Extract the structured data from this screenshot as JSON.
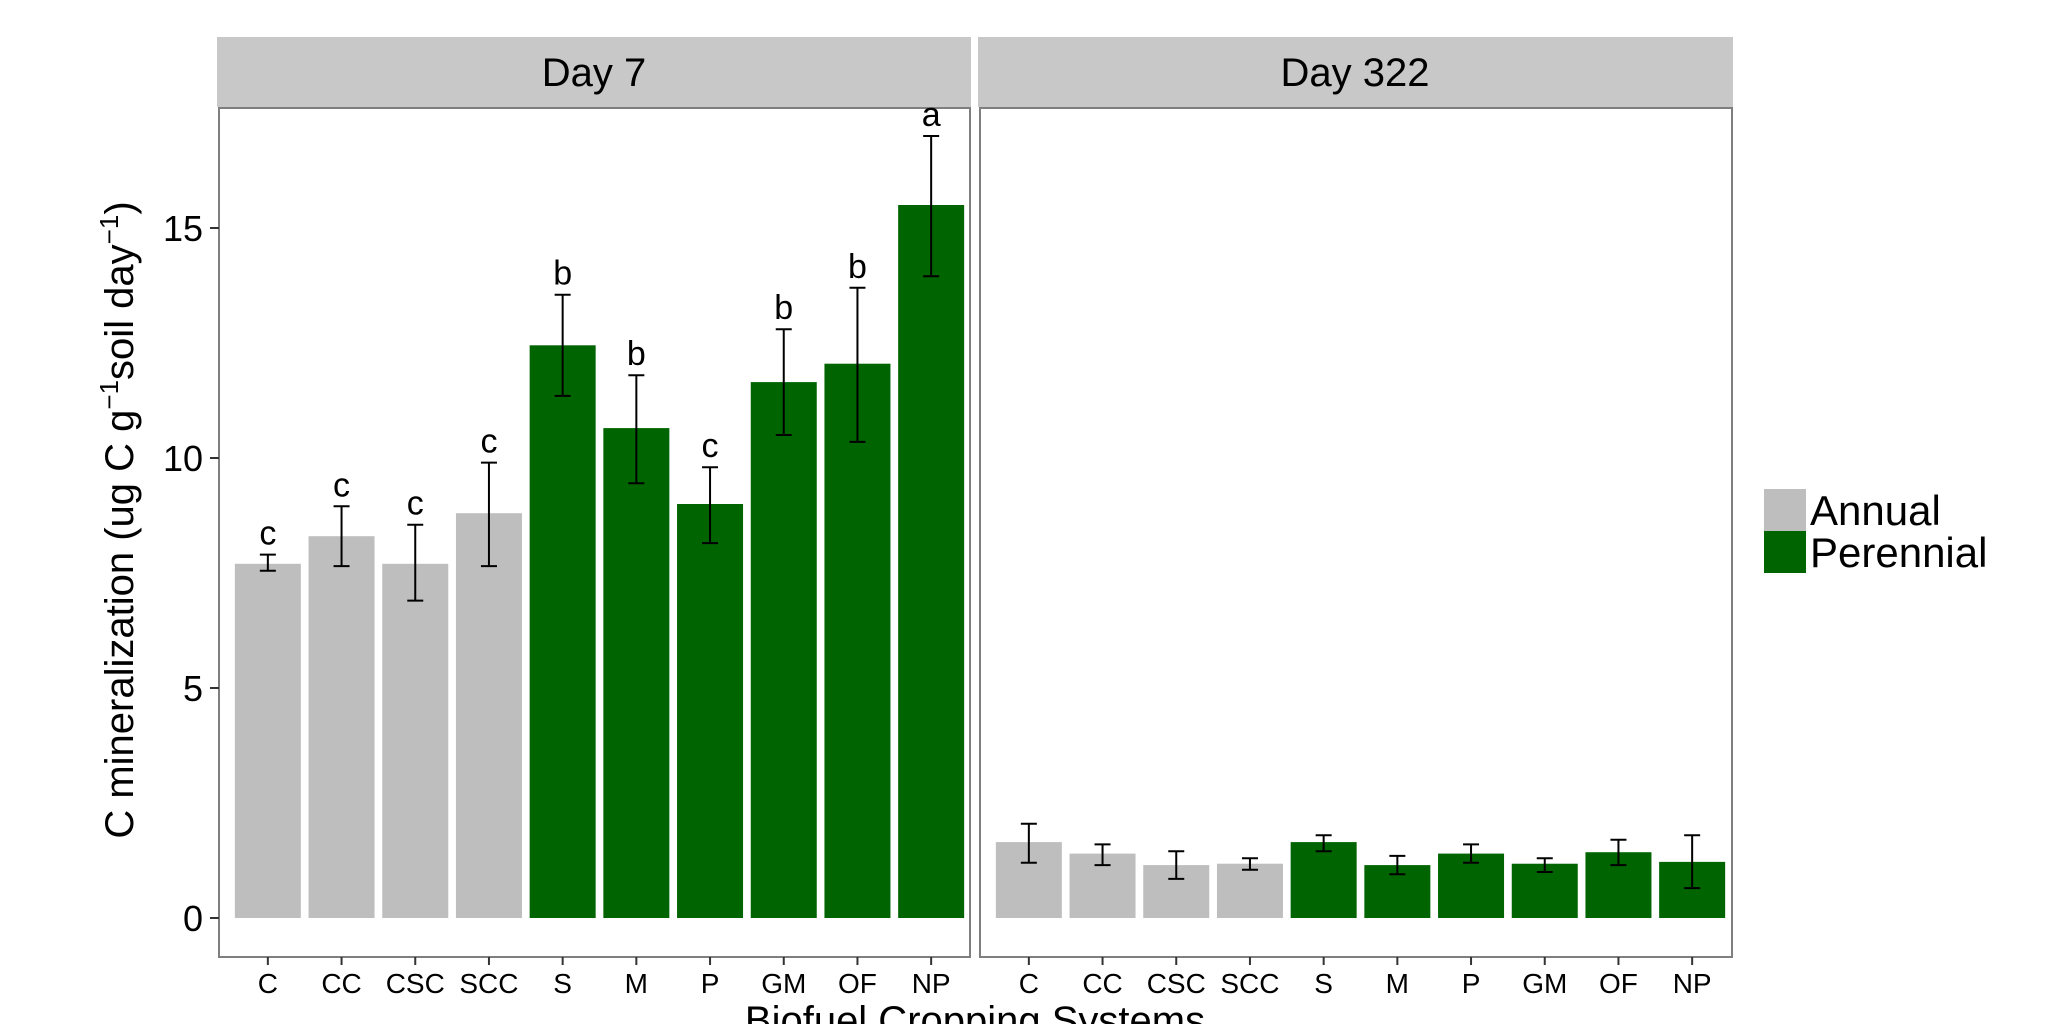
{
  "chart_data": {
    "type": "bar",
    "xlabel": "Biofuel Cropping Systems",
    "ylabel_main": "C mineralization (ug C g",
    "ylabel_sup1": "−1",
    "ylabel_mid": "soil day",
    "ylabel_sup2": "−1",
    "ylabel_end": ")",
    "ylim": [
      -0.8,
      17.6
    ],
    "yticks": [
      "0",
      "5",
      "10",
      "15"
    ],
    "ytick_values": [
      0,
      5,
      10,
      15
    ],
    "categories": [
      "C",
      "CC",
      "CSC",
      "SCC",
      "S",
      "M",
      "P",
      "GM",
      "OF",
      "NP"
    ],
    "groups": [
      "Annual",
      "Annual",
      "Annual",
      "Annual",
      "Perennial",
      "Perennial",
      "Perennial",
      "Perennial",
      "Perennial",
      "Perennial"
    ],
    "legend": {
      "position": "right",
      "entries": [
        {
          "name": "Annual",
          "color": "#bebebe"
        },
        {
          "name": "Perennial",
          "color": "#006400"
        }
      ]
    },
    "panels": [
      {
        "title": "Day 7",
        "values": [
          7.7,
          8.3,
          7.7,
          8.8,
          12.45,
          10.65,
          9.0,
          11.65,
          12.05,
          15.5
        ],
        "err_low": [
          7.55,
          7.65,
          6.9,
          7.65,
          11.35,
          9.45,
          8.15,
          10.5,
          10.35,
          13.95
        ],
        "err_high": [
          7.9,
          8.95,
          8.55,
          9.9,
          13.55,
          11.8,
          9.8,
          12.8,
          13.7,
          17.0
        ],
        "labels": [
          "c",
          "c",
          "c",
          "c",
          "b",
          "b",
          "c",
          "b",
          "b",
          "a"
        ]
      },
      {
        "title": "Day 322",
        "values": [
          1.65,
          1.4,
          1.15,
          1.18,
          1.65,
          1.15,
          1.4,
          1.18,
          1.43,
          1.22
        ],
        "err_low": [
          1.2,
          1.15,
          0.85,
          1.05,
          1.45,
          0.95,
          1.2,
          1.0,
          1.15,
          0.65
        ],
        "err_high": [
          2.05,
          1.6,
          1.45,
          1.3,
          1.8,
          1.35,
          1.6,
          1.3,
          1.7,
          1.8
        ],
        "labels": [
          "",
          "",
          "",
          "",
          "",
          "",
          "",
          "",
          "",
          ""
        ]
      }
    ]
  }
}
